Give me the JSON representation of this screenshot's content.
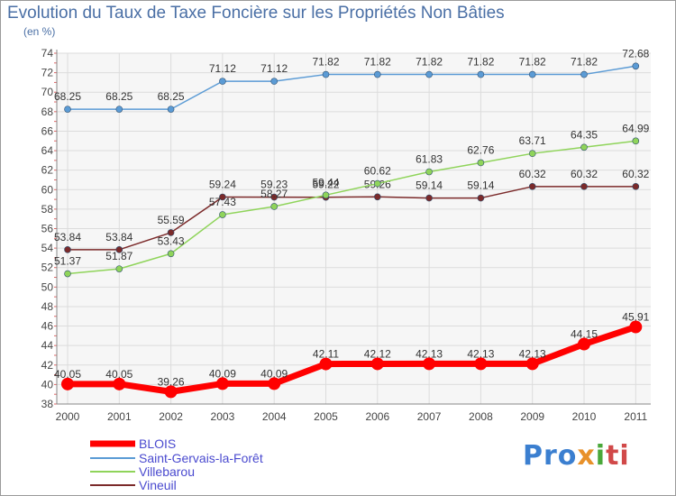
{
  "chart_data": {
    "type": "line",
    "title": "Evolution du Taux de Taxe Foncière sur les Propriétés Non Bâties",
    "subtitle": "(en %)",
    "x": [
      2000,
      2001,
      2002,
      2003,
      2004,
      2005,
      2006,
      2007,
      2008,
      2009,
      2010,
      2011
    ],
    "ylim": [
      38,
      74
    ],
    "yticks": [
      38,
      40,
      42,
      44,
      46,
      48,
      50,
      52,
      54,
      56,
      58,
      60,
      62,
      64,
      66,
      68,
      70,
      72,
      74
    ],
    "grid": true,
    "legend_position": "bottom-left",
    "series": [
      {
        "name": "BLOIS",
        "color": "#ff0000",
        "values": [
          40.05,
          40.05,
          39.26,
          40.09,
          40.09,
          42.11,
          42.12,
          42.13,
          42.13,
          42.13,
          44.15,
          45.91
        ],
        "labels": [
          "40.05",
          "40.05",
          "39.26",
          "40.09",
          "40.09",
          "42.11",
          "42.12",
          "42.13",
          "42.13",
          "42.13",
          "44.15",
          "45.91"
        ]
      },
      {
        "name": "Saint-Gervais-la-Forêt",
        "color": "#5b9bd5",
        "values": [
          68.25,
          68.25,
          68.25,
          71.12,
          71.12,
          71.82,
          71.82,
          71.82,
          71.82,
          71.82,
          71.82,
          72.68
        ],
        "labels": [
          "68.25",
          "68.25",
          "68.25",
          "71.12",
          "71.12",
          "71.82",
          "71.82",
          "71.82",
          "71.82",
          "71.82",
          "71.82",
          "72.68"
        ]
      },
      {
        "name": "Villebarou",
        "color": "#8fd45a",
        "values": [
          51.37,
          51.87,
          53.43,
          57.43,
          58.27,
          59.44,
          60.62,
          61.83,
          62.76,
          63.71,
          64.35,
          64.99
        ],
        "labels": [
          "51.37",
          "51.87",
          "53.43",
          "57.43",
          "58.27",
          "59.44",
          "60.62",
          "61.83",
          "62.76",
          "63.71",
          "64.35",
          "64.99"
        ]
      },
      {
        "name": "Vineuil",
        "color": "#7b2a2a",
        "values": [
          53.84,
          53.84,
          55.59,
          59.24,
          59.23,
          59.22,
          59.26,
          59.14,
          59.14,
          60.32,
          60.32,
          60.32
        ],
        "labels": [
          "53.84",
          "53.84",
          "55.59",
          "59.24",
          "59.23",
          "59.22",
          "59.26",
          "59.14",
          "59.14",
          "60.32",
          "60.32",
          "60.32"
        ]
      }
    ]
  },
  "brand": {
    "p1": "Pro",
    "p2": "x",
    "p3": "i",
    "p4": "ti"
  }
}
